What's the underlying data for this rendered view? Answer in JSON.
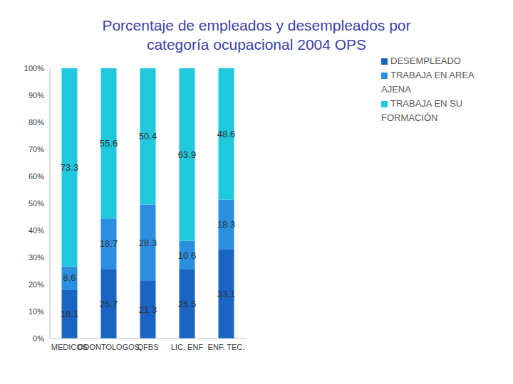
{
  "chart_data": {
    "type": "bar",
    "title": "Porcentaje de empleados y desempleados por categoría ocupacional 2004 OPS",
    "categories": [
      "MEDICOS",
      "ODONTOLOGOS",
      "QFBS",
      "LIC. ENF",
      "ENF. TEC."
    ],
    "series": [
      {
        "name": "DESEMPLEADO",
        "color": "#1a64c4",
        "values": [
          18.1,
          25.7,
          21.3,
          25.5,
          33.1
        ]
      },
      {
        "name": "TRABAJA EN AREA AJENA",
        "color": "#2a8fe0",
        "values": [
          8.6,
          18.7,
          28.3,
          10.6,
          18.3
        ]
      },
      {
        "name": "TRABAJA EN SU FORMACIÓN",
        "color": "#1fc8dc",
        "values": [
          73.3,
          55.6,
          50.4,
          63.9,
          48.6
        ]
      }
    ],
    "ylim": [
      0,
      100
    ],
    "yticks": [
      {
        "value": 0,
        "label": "0%"
      },
      {
        "value": 10,
        "label": "10%"
      },
      {
        "value": 20,
        "label": "20%"
      },
      {
        "value": 30,
        "label": "30%"
      },
      {
        "value": 40,
        "label": "40%"
      },
      {
        "value": 50,
        "label": "50%"
      },
      {
        "value": 60,
        "label": "60%"
      },
      {
        "value": 70,
        "label": "70%"
      },
      {
        "value": 80,
        "label": "80%"
      },
      {
        "value": 90,
        "label": "90%"
      },
      {
        "value": 100,
        "label": "100%"
      }
    ],
    "stacked": true,
    "data_labels": true,
    "legend": "right",
    "grid": false
  }
}
